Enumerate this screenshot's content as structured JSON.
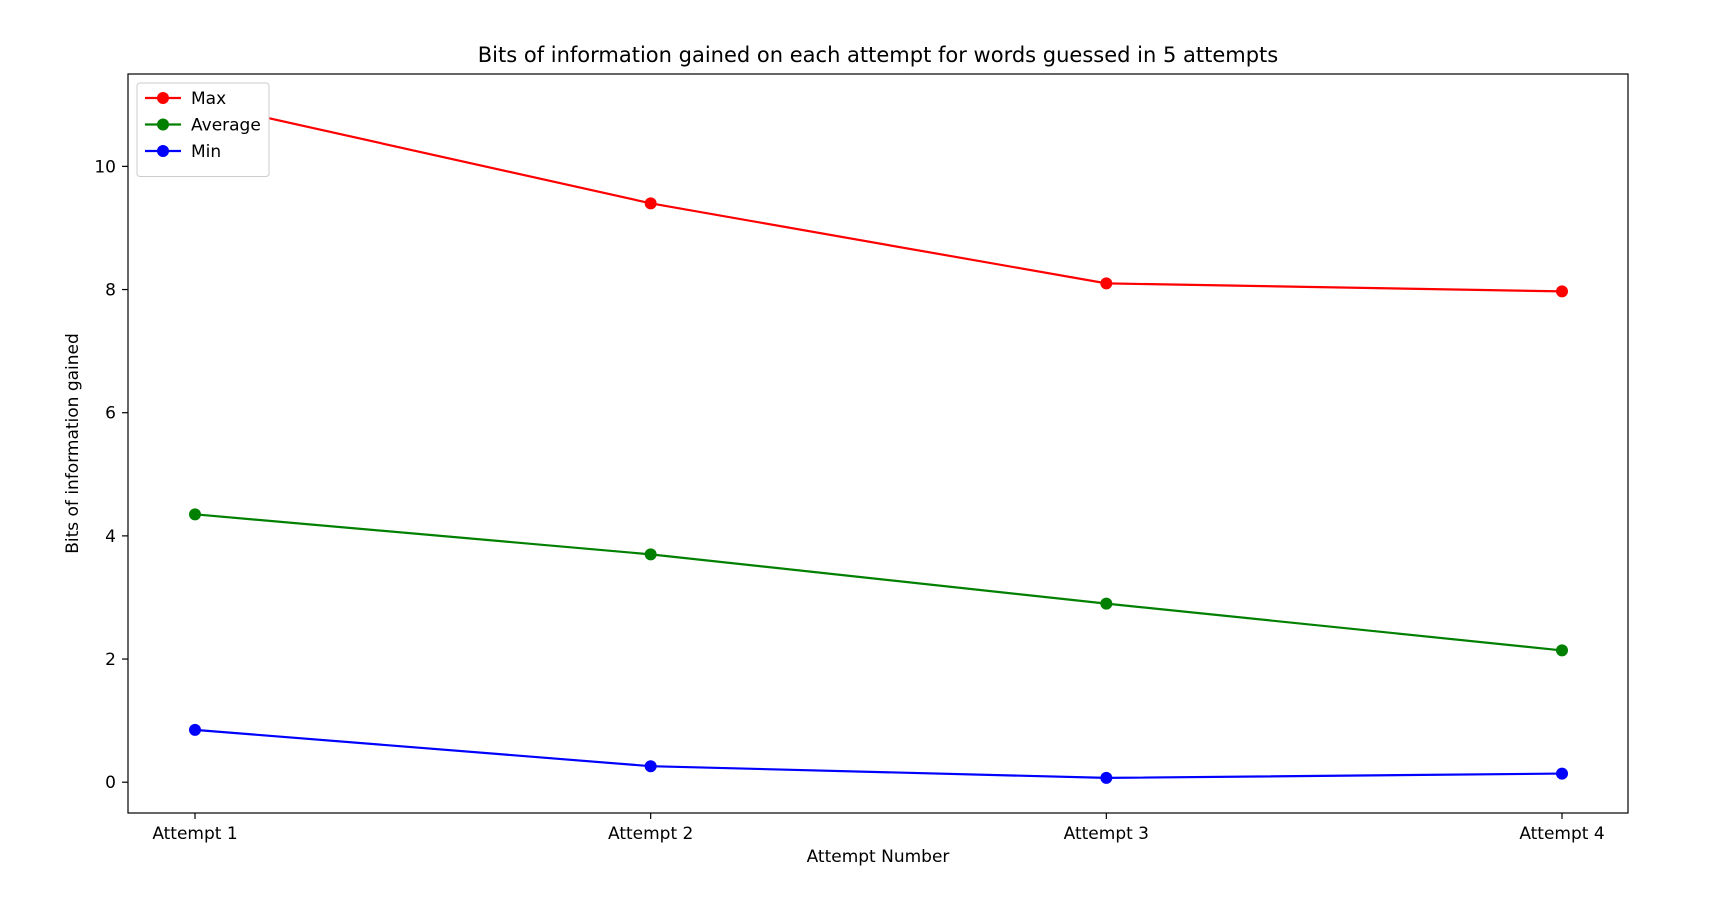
{
  "chart_data": {
    "type": "line",
    "title": "Bits of information gained on each attempt for words guessed in 5 attempts",
    "xlabel": "Attempt Number",
    "ylabel": "Bits of information gained",
    "categories": [
      "Attempt 1",
      "Attempt 2",
      "Attempt 3",
      "Attempt 4"
    ],
    "ylim": [
      -0.5,
      11.5
    ],
    "yticks": [
      0,
      2,
      4,
      6,
      8,
      10
    ],
    "grid": false,
    "legend_position": "top-left",
    "series": [
      {
        "name": "Max",
        "color": "#ff0000",
        "values": [
          11.05,
          9.4,
          8.1,
          7.97
        ]
      },
      {
        "name": "Average",
        "color": "#008000",
        "values": [
          4.35,
          3.7,
          2.9,
          2.14
        ]
      },
      {
        "name": "Min",
        "color": "#0000ff",
        "values": [
          0.85,
          0.26,
          0.07,
          0.14
        ]
      }
    ]
  }
}
